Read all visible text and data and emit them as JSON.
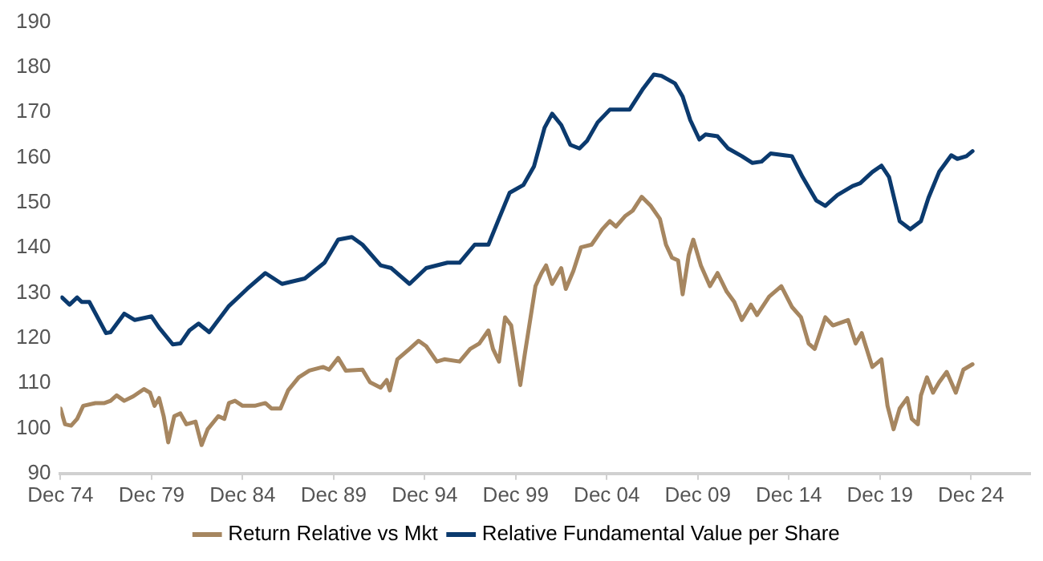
{
  "chart_data": {
    "type": "line",
    "ylim": [
      90,
      190
    ],
    "yticks": [
      90,
      100,
      110,
      120,
      130,
      140,
      150,
      160,
      170,
      180,
      190
    ],
    "xlim": [
      "1974-12",
      "2028-03"
    ],
    "xticks": [
      {
        "value": "1974-12",
        "label": "Dec 74"
      },
      {
        "value": "1979-12",
        "label": "Dec 79"
      },
      {
        "value": "1984-12",
        "label": "Dec 84"
      },
      {
        "value": "1989-12",
        "label": "Dec 89"
      },
      {
        "value": "1994-12",
        "label": "Dec 94"
      },
      {
        "value": "1999-12",
        "label": "Dec 99"
      },
      {
        "value": "2004-12",
        "label": "Dec 04"
      },
      {
        "value": "2009-12",
        "label": "Dec 09"
      },
      {
        "value": "2014-12",
        "label": "Dec 14"
      },
      {
        "value": "2019-12",
        "label": "Dec 19"
      },
      {
        "value": "2024-12",
        "label": "Dec 24"
      }
    ],
    "grid": false,
    "legend": "bottom",
    "marker": "none",
    "line_style": "solid",
    "series": [
      {
        "name": "Return Relative vs Mkt",
        "color": "#a68660",
        "x": [
          "1974-12",
          "1975-03",
          "1975-07",
          "1975-11",
          "1976-03",
          "1976-11",
          "1977-05",
          "1977-09",
          "1978-01",
          "1978-06",
          "1978-12",
          "1979-07",
          "1979-11",
          "1980-02",
          "1980-05",
          "1980-08",
          "1980-11",
          "1981-03",
          "1981-07",
          "1981-11",
          "1982-05",
          "1982-09",
          "1983-01",
          "1983-08",
          "1983-12",
          "1984-03",
          "1984-07",
          "1984-12",
          "1985-08",
          "1986-03",
          "1986-07",
          "1987-01",
          "1987-06",
          "1988-01",
          "1988-08",
          "1989-05",
          "1989-09",
          "1990-03",
          "1990-08",
          "1991-07",
          "1991-12",
          "1992-07",
          "1992-11",
          "1993-01",
          "1993-06",
          "1994-02",
          "1994-08",
          "1995-01",
          "1995-08",
          "1996-01",
          "1996-11",
          "1997-06",
          "1997-12",
          "1998-06",
          "1998-09",
          "1999-01",
          "1999-05",
          "1999-09",
          "2000-03",
          "2000-06",
          "2001-01",
          "2001-05",
          "2001-08",
          "2001-12",
          "2002-06",
          "2002-09",
          "2003-02",
          "2003-07",
          "2004-02",
          "2004-09",
          "2005-02",
          "2005-06",
          "2005-12",
          "2006-05",
          "2006-11",
          "2007-05",
          "2007-11",
          "2008-03",
          "2008-07",
          "2008-11",
          "2009-02",
          "2009-06",
          "2009-09",
          "2010-02",
          "2010-08",
          "2011-01",
          "2011-07",
          "2011-12",
          "2012-05",
          "2012-11",
          "2013-03",
          "2013-11",
          "2014-07",
          "2015-02",
          "2015-08",
          "2016-01",
          "2016-05",
          "2016-12",
          "2017-05",
          "2018-03",
          "2018-08",
          "2018-12",
          "2019-07",
          "2020-01",
          "2020-05",
          "2020-09",
          "2021-01",
          "2021-06",
          "2021-09",
          "2022-01",
          "2022-03",
          "2022-07",
          "2022-11",
          "2023-03",
          "2023-08",
          "2024-02",
          "2024-07",
          "2025-01"
        ],
        "values": [
          104.4,
          100.9,
          100.6,
          102.1,
          105,
          105.6,
          105.6,
          106.1,
          107.3,
          106.1,
          107.1,
          108.7,
          107.9,
          105,
          106.7,
          102.7,
          96.9,
          102.7,
          103.3,
          100.9,
          101.5,
          96.3,
          99.8,
          102.7,
          102.1,
          105.6,
          106.1,
          105,
          105,
          105.6,
          104.4,
          104.4,
          108.4,
          111.3,
          112.8,
          113.6,
          113,
          115.6,
          112.8,
          113,
          110.2,
          109,
          110.7,
          108.4,
          115.3,
          117.6,
          119.4,
          118.2,
          114.8,
          115.3,
          114.8,
          117.6,
          118.8,
          121.7,
          117.6,
          114.8,
          124.6,
          122.8,
          109.6,
          116.5,
          131.5,
          134.4,
          136.1,
          132,
          135.5,
          130.9,
          134.9,
          140.1,
          140.7,
          144.1,
          145.9,
          144.7,
          147,
          148.2,
          151.3,
          149.3,
          146.4,
          140.7,
          137.8,
          137.2,
          129.7,
          138.4,
          141.8,
          136.1,
          131.5,
          134.4,
          130.3,
          128,
          124,
          127.4,
          125.1,
          129.2,
          131.5,
          126.9,
          124.6,
          118.8,
          117.6,
          124.6,
          122.8,
          124,
          118.8,
          121.1,
          113.6,
          115.3,
          105,
          99.8,
          104.4,
          106.7,
          102.1,
          100.9,
          107.3,
          111.3,
          107.9,
          110.2,
          112.5,
          107.9,
          113,
          114.2
        ]
      },
      {
        "name": "Relative Fundamental Value per Share",
        "color": "#0b3a6e",
        "x": [
          "1975-01",
          "1975-06",
          "1975-11",
          "1976-02",
          "1976-07",
          "1977-06",
          "1977-09",
          "1978-06",
          "1979-01",
          "1979-12",
          "1980-05",
          "1981-02",
          "1981-07",
          "1982-01",
          "1982-07",
          "1983-02",
          "1984-03",
          "1985-03",
          "1986-03",
          "1987-02",
          "1988-05",
          "1989-06",
          "1990-03",
          "1990-12",
          "1991-07",
          "1992-07",
          "1993-02",
          "1994-02",
          "1995-01",
          "1996-03",
          "1996-11",
          "1997-09",
          "1998-06",
          "1999-01",
          "1999-08",
          "2000-05",
          "2000-12",
          "2001-07",
          "2001-12",
          "2002-06",
          "2002-12",
          "2003-06",
          "2003-11",
          "2004-06",
          "2005-02",
          "2006-03",
          "2006-12",
          "2007-07",
          "2007-12",
          "2008-09",
          "2009-02",
          "2009-07",
          "2010-01",
          "2010-05",
          "2011-01",
          "2011-08",
          "2012-05",
          "2012-12",
          "2013-06",
          "2013-12",
          "2014-09",
          "2015-02",
          "2015-09",
          "2016-06",
          "2016-12",
          "2017-08",
          "2018-06",
          "2018-11",
          "2019-07",
          "2020-01",
          "2020-06",
          "2021-01",
          "2021-08",
          "2022-03",
          "2022-08",
          "2023-03",
          "2023-11",
          "2024-03",
          "2024-09",
          "2025-01"
        ],
        "values": [
          129,
          127.4,
          129,
          128,
          128,
          121.1,
          121.3,
          125.4,
          124,
          124.8,
          122.3,
          118.6,
          118.8,
          121.7,
          123.2,
          121.3,
          127.1,
          130.9,
          134.4,
          132,
          133.2,
          136.7,
          141.8,
          142.4,
          140.7,
          136.1,
          135.5,
          132,
          135.5,
          136.7,
          136.7,
          140.7,
          140.7,
          146.5,
          152.2,
          153.9,
          158,
          166.6,
          169.7,
          167.2,
          162.8,
          162,
          163.7,
          167.8,
          170.6,
          170.6,
          175.3,
          178.4,
          178.1,
          176.4,
          173.5,
          168.3,
          164,
          165.1,
          164.7,
          162,
          160.3,
          158.8,
          159.1,
          160.9,
          160.5,
          160.3,
          155.7,
          150.5,
          149.3,
          151.7,
          153.7,
          154.3,
          156.8,
          158.2,
          155.7,
          145.9,
          144.1,
          145.9,
          151.1,
          156.8,
          160.5,
          159.7,
          160.3,
          161.4
        ]
      }
    ]
  }
}
